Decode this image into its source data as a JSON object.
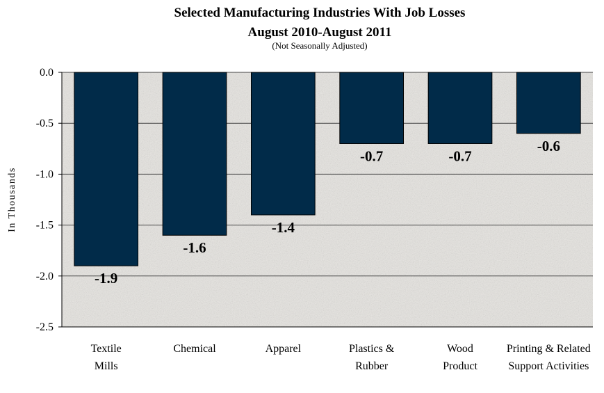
{
  "chart_data": {
    "type": "bar",
    "title": "Selected Manufacturing Industries With Job Losses",
    "title_line2": "August 2010-August 2011",
    "subtitle": "(Not Seasonally Adjusted)",
    "ylabel": "In Thousands",
    "xlabel": "",
    "ylim": [
      -2.5,
      0.0
    ],
    "yticks": [
      "0.0",
      "-0.5",
      "-1.0",
      "-1.5",
      "-2.0",
      "-2.5"
    ],
    "ytick_values": [
      0.0,
      -0.5,
      -1.0,
      -1.5,
      -2.0,
      -2.5
    ],
    "grid": true,
    "categories": [
      [
        "Textile",
        "Mills"
      ],
      [
        "Chemical"
      ],
      [
        "Apparel"
      ],
      [
        "Plastics &",
        "Rubber"
      ],
      [
        "Wood",
        "Product"
      ],
      [
        "Printing & Related",
        "Support Activities"
      ]
    ],
    "values": [
      -1.9,
      -1.6,
      -1.4,
      -0.7,
      -0.7,
      -0.6
    ],
    "data_labels": [
      "-1.9",
      "-1.6",
      "-1.4",
      "-0.7",
      "-0.7",
      "-0.6"
    ],
    "colors": {
      "bar": "#012b49",
      "plot_bg": "#e6e4e0",
      "grid": "#444444"
    }
  }
}
